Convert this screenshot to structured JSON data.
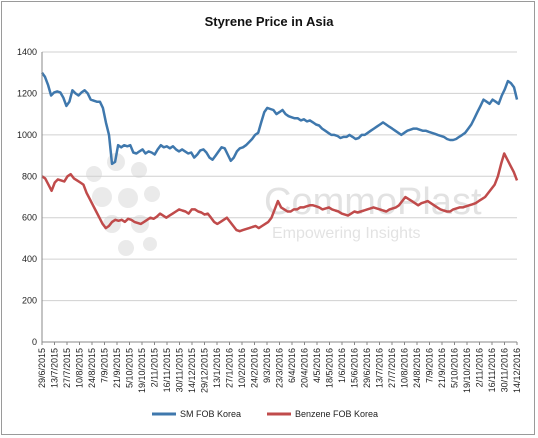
{
  "chart_data": {
    "type": "line",
    "title": "Styrene Price in Asia",
    "xlabel": "",
    "ylabel": "",
    "ylim": [
      0,
      1400
    ],
    "yticks": [
      0,
      200,
      400,
      600,
      800,
      1000,
      1200,
      1400
    ],
    "grid": "horizontal",
    "legend_position": "bottom",
    "x_tick_labels": [
      "29/6/2015",
      "13/7/2015",
      "27/7/2015",
      "10/8/2015",
      "24/8/2015",
      "7/9/2015",
      "21/9/2015",
      "5/10/2015",
      "19/10/2015",
      "2/11/2015",
      "16/11/2015",
      "30/11/2015",
      "14/12/2015",
      "29/12/2015",
      "13/1/2016",
      "27/1/2016",
      "10/2/2016",
      "24/2/2016",
      "9/3/2016",
      "23/3/2016",
      "6/4/2016",
      "20/4/2016",
      "4/5/2016",
      "18/5/2016",
      "1/6/2016",
      "15/6/2016",
      "29/6/2016",
      "13/7/2016",
      "27/7/2016",
      "10/8/2016",
      "24/8/2016",
      "7/9/2016",
      "21/9/2016",
      "5/10/2016",
      "19/10/2016",
      "2/11/2016",
      "16/11/2016",
      "30/11/2016",
      "14/12/2016"
    ],
    "series": [
      {
        "name": "SM FOB Korea",
        "color": "#3f78ad",
        "values": [
          1300,
          1280,
          1240,
          1190,
          1205,
          1210,
          1205,
          1180,
          1140,
          1160,
          1215,
          1200,
          1190,
          1205,
          1215,
          1200,
          1170,
          1165,
          1160,
          1160,
          1130,
          1060,
          1000,
          860,
          870,
          950,
          940,
          950,
          945,
          950,
          915,
          910,
          920,
          930,
          910,
          920,
          915,
          905,
          930,
          950,
          940,
          945,
          935,
          945,
          930,
          920,
          930,
          920,
          910,
          915,
          890,
          905,
          925,
          930,
          915,
          890,
          880,
          900,
          920,
          940,
          935,
          905,
          875,
          890,
          920,
          935,
          940,
          950,
          965,
          980,
          1000,
          1010,
          1060,
          1110,
          1130,
          1125,
          1120,
          1100,
          1110,
          1120,
          1100,
          1090,
          1085,
          1080,
          1080,
          1070,
          1075,
          1065,
          1070,
          1060,
          1050,
          1045,
          1030,
          1020,
          1010,
          1000,
          1000,
          995,
          985,
          990,
          990,
          1000,
          990,
          980,
          985,
          1000,
          1000,
          1010,
          1020,
          1030,
          1040,
          1050,
          1060,
          1050,
          1040,
          1030,
          1020,
          1010,
          1000,
          1010,
          1020,
          1025,
          1030,
          1030,
          1025,
          1020,
          1020,
          1015,
          1010,
          1005,
          1000,
          995,
          990,
          980,
          975,
          975,
          980,
          990,
          1000,
          1010,
          1030,
          1050,
          1080,
          1110,
          1140,
          1170,
          1160,
          1150,
          1170,
          1160,
          1150,
          1190,
          1220,
          1260,
          1250,
          1230,
          1170
        ]
      },
      {
        "name": "Benzene FOB Korea",
        "color": "#c04b4b",
        "values": [
          800,
          790,
          760,
          730,
          770,
          785,
          780,
          775,
          800,
          810,
          790,
          780,
          770,
          760,
          720,
          690,
          660,
          630,
          600,
          570,
          550,
          560,
          580,
          590,
          585,
          590,
          580,
          595,
          590,
          580,
          575,
          570,
          580,
          590,
          600,
          595,
          605,
          620,
          610,
          600,
          610,
          620,
          630,
          640,
          635,
          630,
          620,
          640,
          640,
          630,
          625,
          615,
          620,
          600,
          580,
          570,
          580,
          590,
          600,
          580,
          560,
          540,
          535,
          540,
          545,
          550,
          555,
          560,
          550,
          560,
          570,
          580,
          600,
          640,
          680,
          650,
          640,
          630,
          630,
          640,
          640,
          650,
          650,
          655,
          660,
          660,
          655,
          650,
          640,
          645,
          650,
          640,
          635,
          630,
          620,
          615,
          610,
          620,
          630,
          625,
          630,
          635,
          640,
          645,
          650,
          645,
          640,
          635,
          630,
          640,
          645,
          650,
          660,
          680,
          700,
          690,
          680,
          670,
          660,
          670,
          675,
          680,
          670,
          660,
          650,
          640,
          635,
          630,
          630,
          640,
          645,
          650,
          650,
          655,
          660,
          665,
          670,
          680,
          690,
          700,
          720,
          740,
          760,
          800,
          860,
          910,
          880,
          850,
          820,
          780
        ]
      }
    ]
  },
  "watermark": {
    "brand": "CommoPlast",
    "tagline": "Empowering Insights"
  }
}
